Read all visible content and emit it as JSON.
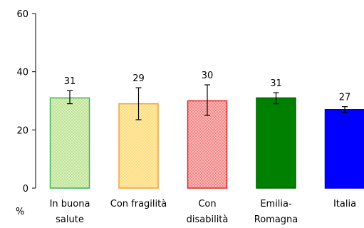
{
  "chart_data": {
    "type": "bar",
    "categories": [
      [
        "In buona",
        "salute"
      ],
      [
        "Con fragilità"
      ],
      [
        "Con",
        "disabilità"
      ],
      [
        "Emilia-",
        "Romagna"
      ],
      [
        "Italia"
      ]
    ],
    "values": [
      31,
      29,
      30,
      31,
      27
    ],
    "value_labels": [
      "31",
      "29",
      "30",
      "31",
      "27"
    ],
    "error_bars": [
      {
        "low": 29,
        "high": 33.5
      },
      {
        "low": 23.5,
        "high": 34.5
      },
      {
        "low": 25,
        "high": 35.5
      },
      {
        "low": 29,
        "high": 32.8
      },
      {
        "low": 26,
        "high": 28
      }
    ],
    "bar_styles": [
      {
        "fill": "#c8e6a0",
        "stroke": "#3cb45a",
        "pattern": "dots"
      },
      {
        "fill": "#ffe28a",
        "stroke": "#f0a040",
        "pattern": "dots"
      },
      {
        "fill": "#f59a9a",
        "stroke": "#e02828",
        "pattern": "dots"
      },
      {
        "fill": "#008000",
        "stroke": "#006400",
        "pattern": "solid"
      },
      {
        "fill": "#0000ff",
        "stroke": "#0000c8",
        "pattern": "solid"
      }
    ],
    "yticks": [
      "0",
      "20",
      "40",
      "60"
    ],
    "ylim": [
      0,
      60
    ],
    "ylabel": "%",
    "grid": false,
    "legend": "none"
  }
}
